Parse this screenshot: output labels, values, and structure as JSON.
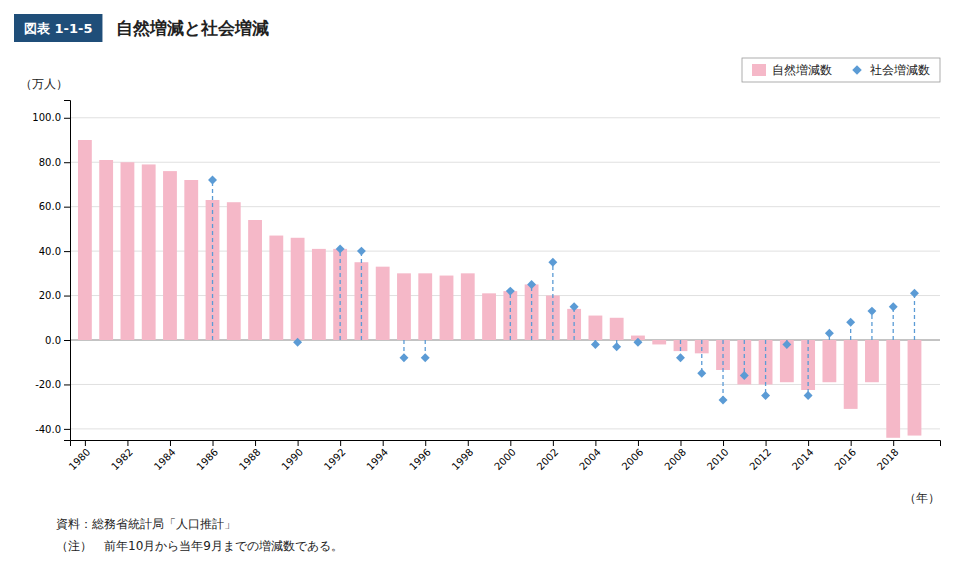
{
  "chart_data": {
    "type": "bar",
    "title": "自然増減と社会増減",
    "subtitle": "図表 1-1-5",
    "ylabel": "（万人）",
    "xlabel": "（年）",
    "annotations": [
      "資料：総務省統計局「人口推計」",
      "（注）　前年10月から当年9月までの増減数である。"
    ],
    "x": [
      1980,
      1981,
      1982,
      1983,
      1984,
      1985,
      1986,
      1987,
      1988,
      1989,
      1990,
      1991,
      1992,
      1993,
      1994,
      1995,
      1996,
      1997,
      1998,
      1999,
      2000,
      2001,
      2002,
      2003,
      2004,
      2005,
      2006,
      2007,
      2008,
      2009,
      2010,
      2011,
      2012,
      2013,
      2014,
      2015,
      2016,
      2017,
      2018,
      2019
    ],
    "series": [
      {
        "name": "自然増減数",
        "type": "bar",
        "color": "#f5b8c8",
        "values": [
          90.0,
          81.0,
          80.0,
          79.0,
          76.0,
          72.0,
          63.0,
          62.0,
          54.0,
          47.0,
          46.0,
          41.0,
          41.0,
          35.0,
          33.0,
          30.0,
          30.0,
          29.0,
          30.0,
          21.0,
          22.0,
          25.0,
          20.0,
          14.0,
          11.0,
          10.0,
          2.0,
          -2.0,
          -5.0,
          -6.0,
          -13.5,
          -20.0,
          -20.0,
          -19.0,
          -22.5,
          -19.0,
          -31.0,
          -19.0,
          -44.0,
          -43.0
        ]
      },
      {
        "name": "社会増減数",
        "type": "scatter",
        "marker": "diamond",
        "line_style": "dashed",
        "color": "#5b9bd5",
        "values": [
          null,
          null,
          null,
          null,
          null,
          null,
          72.0,
          null,
          null,
          null,
          -1.0,
          null,
          41.0,
          40.0,
          null,
          -8.0,
          -8.0,
          null,
          null,
          null,
          22.0,
          25.0,
          35.0,
          15.0,
          -2.0,
          -3.0,
          -1.0,
          null,
          -8.0,
          -15.0,
          -27.0,
          -16.0,
          -25.0,
          -2.0,
          -25.0,
          3.0,
          8.0,
          13.0,
          15.0,
          21.0
        ]
      }
    ],
    "xlim": [
      1979.3,
      2020.2
    ],
    "xticks": [
      1980,
      1982,
      1984,
      1986,
      1988,
      1990,
      1992,
      1994,
      1996,
      1998,
      2000,
      2002,
      2004,
      2006,
      2008,
      2010,
      2012,
      2014,
      2016,
      2018
    ],
    "ylim": [
      -45.0,
      108.0
    ],
    "yticks": [
      {
        "value": -40.0,
        "label": "-40.0"
      },
      {
        "value": -20.0,
        "label": "-20.0"
      },
      {
        "value": 0.0,
        "label": "0.0"
      },
      {
        "value": 20.0,
        "label": "20.0"
      },
      {
        "value": 40.0,
        "label": "40.0"
      },
      {
        "value": 60.0,
        "label": "60.0"
      },
      {
        "value": 80.0,
        "label": "80.0"
      },
      {
        "value": 100.0,
        "label": "100.0"
      }
    ],
    "grid": true,
    "legend": "top-right"
  }
}
